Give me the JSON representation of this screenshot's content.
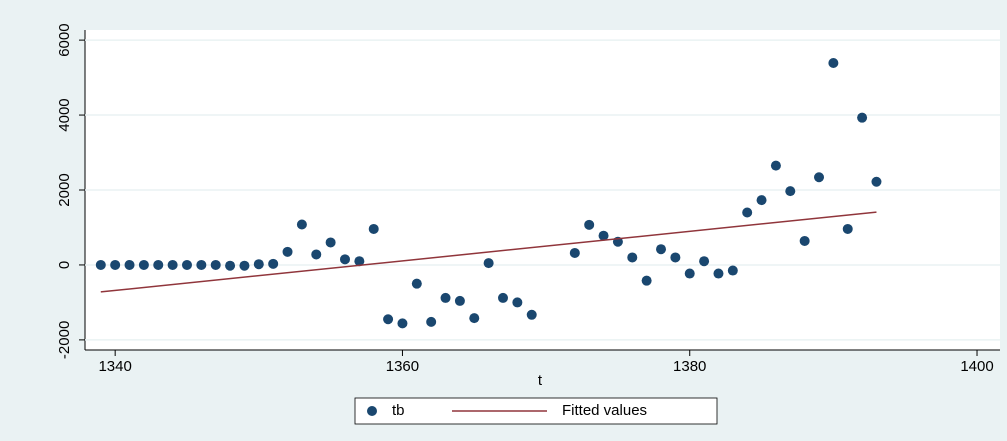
{
  "chart_data": {
    "type": "scatter",
    "x_label": "t",
    "xlim": [
      1337.9,
      1401.6
    ],
    "xticks": [
      1340,
      1360,
      1380,
      1400
    ],
    "ylim": [
      -2270,
      6270
    ],
    "yticks": [
      -2000,
      0,
      2000,
      4000,
      6000
    ],
    "grid": true,
    "series": [
      {
        "name": "tb",
        "type": "scatter",
        "color": "#1a476f",
        "x": [
          1339,
          1340,
          1341,
          1342,
          1343,
          1344,
          1345,
          1346,
          1347,
          1348,
          1349,
          1350,
          1351,
          1352,
          1353,
          1354,
          1355,
          1356,
          1357,
          1358,
          1359,
          1360,
          1361,
          1362,
          1363,
          1364,
          1365,
          1366,
          1367,
          1368,
          1369,
          1372,
          1373,
          1374,
          1375,
          1376,
          1377,
          1378,
          1379,
          1380,
          1381,
          1382,
          1383,
          1384,
          1385,
          1386,
          1387,
          1388,
          1389,
          1390,
          1391,
          1392,
          1393
        ],
        "values": [
          0,
          0,
          0,
          0,
          0,
          0,
          0,
          0,
          0,
          -20,
          -20,
          20,
          30,
          350,
          1080,
          280,
          600,
          150,
          100,
          960,
          -1450,
          -1560,
          -500,
          -1520,
          -880,
          -960,
          -1420,
          50,
          -880,
          -1000,
          -1330,
          320,
          1070,
          780,
          620,
          200,
          -420,
          420,
          200,
          -230,
          100,
          -230,
          -150,
          1400,
          1730,
          2650,
          1970,
          640,
          2340,
          5390,
          960,
          3930,
          2220
        ]
      },
      {
        "name": "Fitted values",
        "type": "line",
        "color": "#90353b",
        "x": [
          1339,
          1393
        ],
        "values": [
          -720,
          1410
        ]
      }
    ]
  }
}
